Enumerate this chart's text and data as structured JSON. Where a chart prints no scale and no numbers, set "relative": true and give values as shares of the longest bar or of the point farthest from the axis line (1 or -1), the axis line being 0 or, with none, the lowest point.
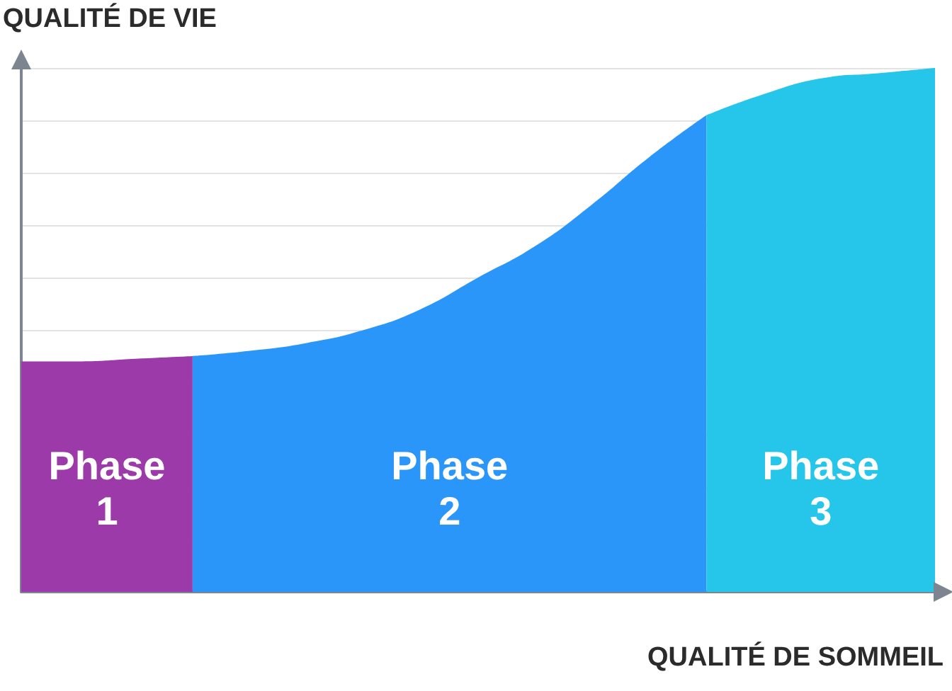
{
  "chart_data": {
    "type": "area",
    "relative": true,
    "xlabel": "QUALITÉ DE SOMMEIL",
    "ylabel": "QUALITÉ DE VIE",
    "grid": "y",
    "legend": false,
    "categories": [
      null,
      null,
      null,
      null,
      null,
      null,
      null,
      null,
      null,
      null,
      null,
      null,
      null,
      null,
      null,
      null,
      null
    ],
    "series": [
      {
        "name": "Phase 1",
        "color": "#9b3aa8",
        "values": [
          0.44,
          0.44,
          0.445,
          0.45,
          null,
          null,
          null,
          null,
          null,
          null,
          null,
          null,
          null,
          null,
          null,
          null,
          null
        ]
      },
      {
        "name": "Phase 2",
        "color": "#2a96fa",
        "values": [
          null,
          null,
          null,
          0.45,
          0.46,
          0.475,
          0.5,
          0.54,
          0.6,
          0.66,
          0.74,
          0.83,
          0.91,
          null,
          null,
          null,
          null
        ]
      },
      {
        "name": "Phase 3",
        "color": "#26c6ea",
        "values": [
          null,
          null,
          null,
          null,
          null,
          null,
          null,
          null,
          null,
          null,
          null,
          null,
          0.91,
          0.95,
          0.98,
          0.99,
          1
        ]
      }
    ]
  }
}
